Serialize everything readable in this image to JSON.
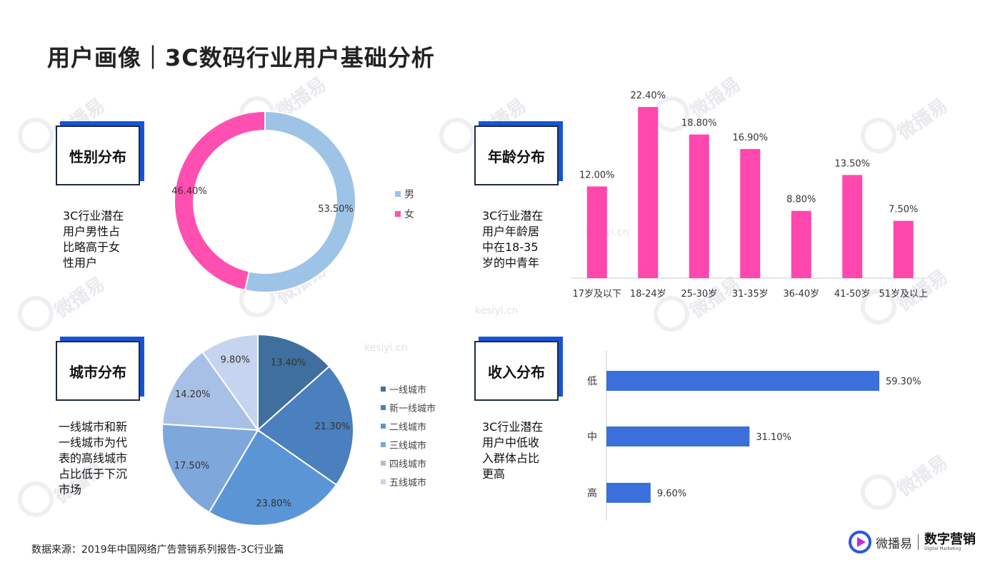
{
  "page": {
    "title": "用户画像｜3C数码行业用户基础分析",
    "source": "数据来源：2019年中国网络广告营销系列报告-3C行业篇"
  },
  "logo": {
    "name": "微播易",
    "brand": "数字营销",
    "sub": "Digital Marketing"
  },
  "watermark_text": [
    "微播易",
    "kesiyi.cn"
  ],
  "gender": {
    "label": "性别分布",
    "description": [
      "3C行业潜在",
      "用户男性占",
      "比略高于女",
      "性用户"
    ]
  },
  "age": {
    "label": "年龄分布",
    "description": [
      "3C行业潜在",
      "用户年龄居",
      "中在18-35",
      "岁的中青年"
    ]
  },
  "city": {
    "label": "城市分布",
    "description": [
      "一线城市和新",
      "一线城市为代",
      "表的高线城市",
      "占比低于下沉",
      "市场"
    ]
  },
  "income": {
    "label": "收入分布",
    "description": [
      "3C行业潜在",
      "用户中低收",
      "入群体占比",
      "更高"
    ]
  },
  "chart_data": [
    {
      "type": "pie",
      "variant": "donut",
      "categories": [
        "男",
        "女"
      ],
      "values": [
        53.5,
        46.4
      ],
      "labels": [
        "53.50%",
        "46.40%"
      ],
      "colors": [
        "#9dc3e6",
        "#ff4fb0"
      ],
      "legend": "right"
    },
    {
      "type": "bar",
      "categories": [
        "17岁及以下",
        "18-24岁",
        "25-30岁",
        "31-35岁",
        "36-40岁",
        "41-50岁",
        "51岁及以上"
      ],
      "values": [
        12.0,
        22.4,
        18.8,
        16.9,
        8.8,
        13.5,
        7.5
      ],
      "labels": [
        "12.00%",
        "22.40%",
        "18.80%",
        "16.90%",
        "8.80%",
        "13.50%",
        "7.50%"
      ],
      "color": "#ff47ad",
      "ylim": [
        0,
        22.4
      ]
    },
    {
      "type": "pie",
      "categories": [
        "一线城市",
        "新一线城市",
        "二线城市",
        "三线城市",
        "四线城市",
        "五线城市"
      ],
      "values": [
        13.4,
        21.3,
        23.8,
        17.5,
        14.2,
        9.8
      ],
      "labels": [
        "13.40%",
        "21.30%",
        "23.80%",
        "17.50%",
        "14.20%",
        "9.80%"
      ],
      "colors": [
        "#3f6f9e",
        "#4a80bd",
        "#5b95d6",
        "#7ea7dc",
        "#a9c0e6",
        "#c6d4ef"
      ],
      "legend": "right"
    },
    {
      "type": "bar",
      "orientation": "horizontal",
      "categories": [
        "低",
        "中",
        "高"
      ],
      "values": [
        59.3,
        31.1,
        9.6
      ],
      "labels": [
        "59.30%",
        "31.10%",
        "9.60%"
      ],
      "color": "#3b6fdc",
      "xlim": [
        0,
        59.3
      ]
    }
  ]
}
